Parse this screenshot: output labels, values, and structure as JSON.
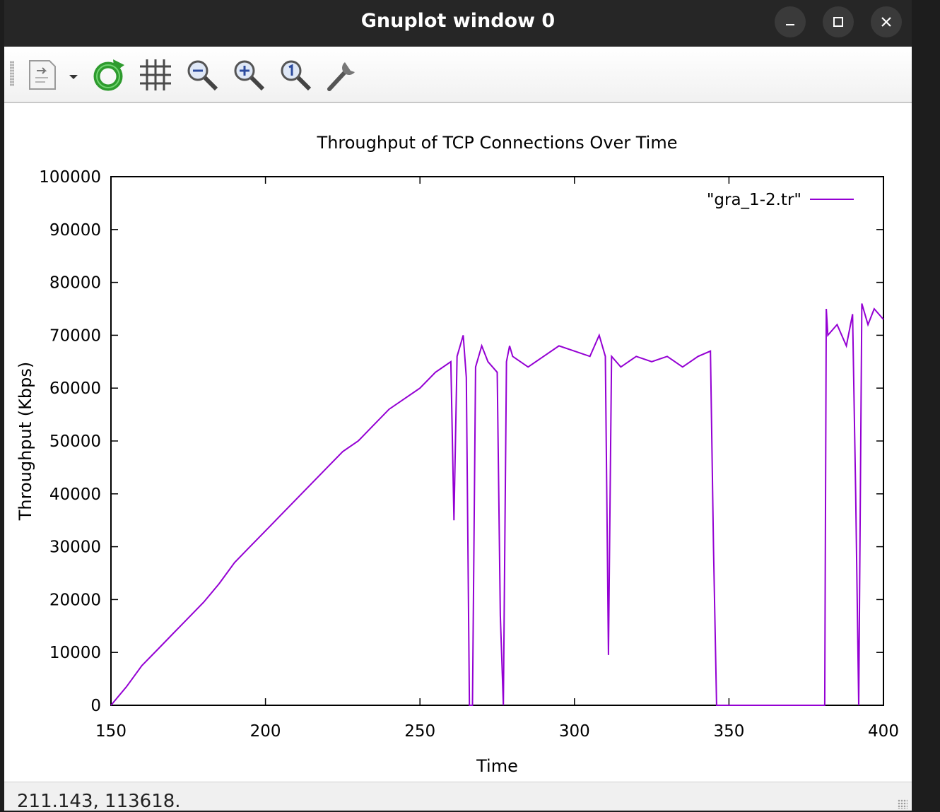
{
  "window": {
    "title": "Gnuplot window 0",
    "minimize_icon": "minimize-icon",
    "maximize_icon": "maximize-icon",
    "close_icon": "close-icon"
  },
  "toolbar": {
    "items": [
      {
        "icon": "export-icon"
      },
      {
        "icon": "dropdown-arrow-icon"
      },
      {
        "icon": "replot-icon"
      },
      {
        "icon": "grid-icon"
      },
      {
        "icon": "zoom-out-icon"
      },
      {
        "icon": "zoom-in-icon"
      },
      {
        "icon": "zoom-reset-icon"
      },
      {
        "icon": "settings-wrench-icon"
      }
    ]
  },
  "status": {
    "coords": "211.143,  113618."
  },
  "colors": {
    "line": "#9400d3",
    "titlebar": "#262626",
    "background": "#ffffff"
  },
  "chart_data": {
    "type": "line",
    "title": "Throughput of TCP Connections Over Time",
    "xlabel": "Time",
    "ylabel": "Throughput (Kbps)",
    "xlim": [
      150,
      400
    ],
    "ylim": [
      0,
      100000
    ],
    "xticks": [
      "150",
      "200",
      "250",
      "300",
      "350",
      "400"
    ],
    "yticks": [
      "0",
      "10000",
      "20000",
      "30000",
      "40000",
      "50000",
      "60000",
      "70000",
      "80000",
      "90000",
      "100000"
    ],
    "grid": false,
    "legend": "top-right",
    "series": [
      {
        "name": "\"gra_1-2.tr\"",
        "x": [
          150,
          155,
          160,
          165,
          170,
          175,
          180,
          185,
          190,
          195,
          200,
          205,
          210,
          215,
          220,
          225,
          230,
          235,
          240,
          245,
          250,
          255,
          260,
          261,
          262,
          264,
          265,
          266,
          267,
          268,
          270,
          272,
          275,
          276,
          277,
          278,
          279,
          280,
          285,
          290,
          295,
          300,
          305,
          308,
          310,
          311,
          312,
          315,
          320,
          325,
          330,
          335,
          340,
          344,
          345,
          346,
          346.5,
          381,
          381.5,
          382,
          385,
          388,
          390,
          391,
          392,
          393,
          395,
          397,
          400
        ],
        "y": [
          0,
          3500,
          7500,
          10500,
          13500,
          16500,
          19500,
          23000,
          27000,
          30000,
          33000,
          36000,
          39000,
          42000,
          45000,
          48000,
          50000,
          53000,
          56000,
          58000,
          60000,
          63000,
          65000,
          35000,
          66000,
          70000,
          62000,
          0,
          0,
          64000,
          68000,
          65000,
          63000,
          17000,
          0,
          65000,
          68000,
          66000,
          64000,
          66000,
          68000,
          67000,
          66000,
          70000,
          66000,
          9500,
          66000,
          64000,
          66000,
          65000,
          66000,
          64000,
          66000,
          67000,
          30000,
          0,
          0,
          0,
          75000,
          70000,
          72000,
          68000,
          74000,
          40000,
          0,
          76000,
          72000,
          75000,
          73000
        ]
      }
    ]
  }
}
